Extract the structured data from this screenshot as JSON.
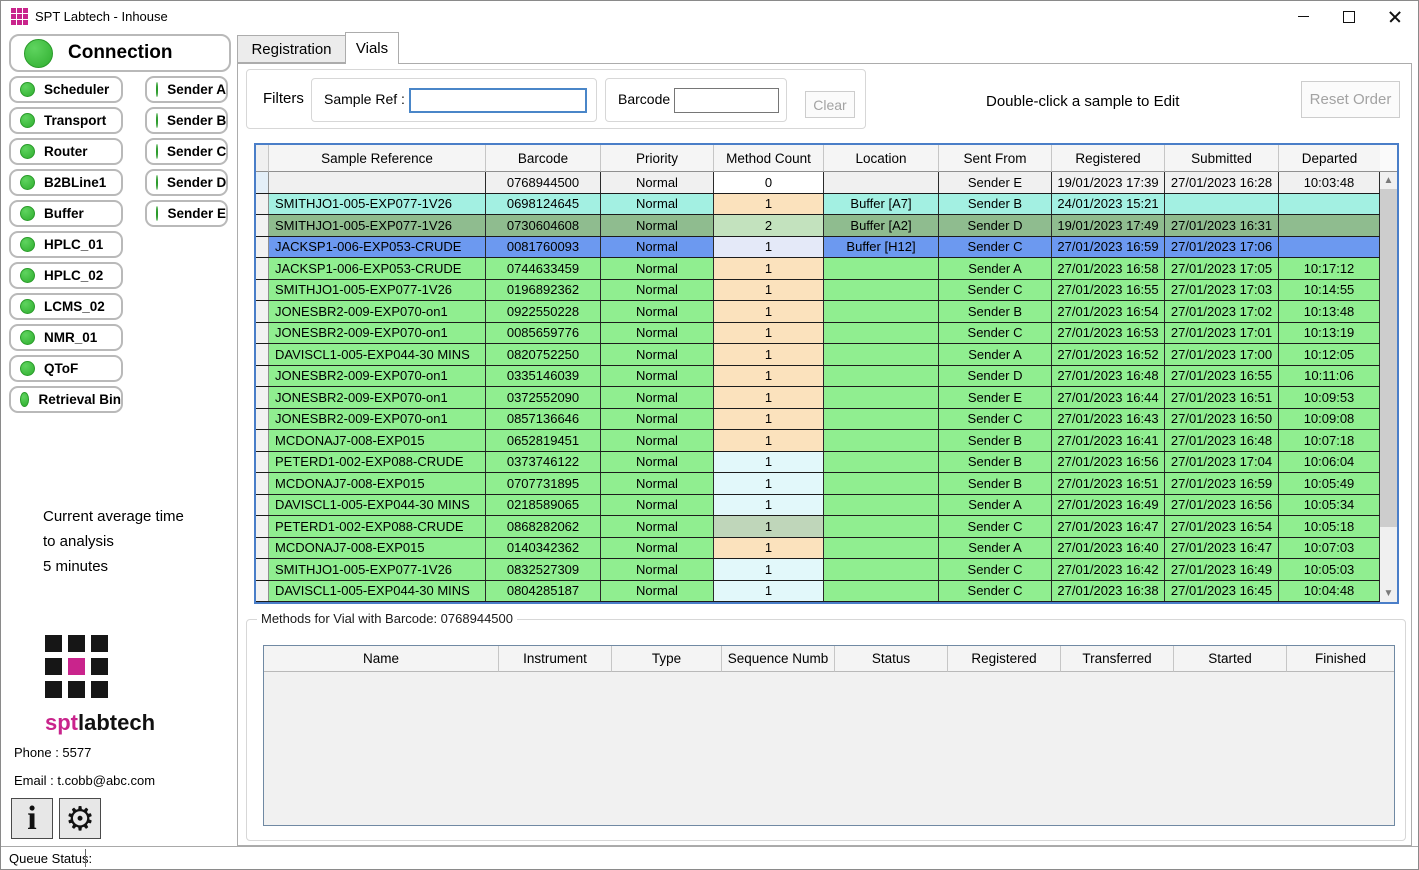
{
  "colors": {
    "status_green": "#3abe3a",
    "brand_magenta": "#c9248c",
    "focus_blue": "#4a86c8",
    "grid_border_blue": "#4a7ec8"
  },
  "window": {
    "title": "SPT Labtech - Inhouse"
  },
  "sidebar": {
    "connection_label": "Connection",
    "devices": [
      "Scheduler",
      "Transport",
      "Router",
      "B2BLine1",
      "Buffer",
      "HPLC_01",
      "HPLC_02",
      "LCMS_02",
      "NMR_01",
      "QToF",
      "Retrieval Bin"
    ],
    "senders": [
      "Sender A",
      "Sender B",
      "Sender C",
      "Sender D",
      "Sender E"
    ],
    "average_time": [
      "Current average time",
      "to analysis",
      "5 minutes"
    ],
    "logo": {
      "spt": "spt",
      "labtech": "labtech"
    },
    "phone": "Phone : 5577",
    "email": "Email : t.cobb@abc.com",
    "icons": {
      "info": "i",
      "settings": "⚙"
    }
  },
  "statusbar": {
    "label": "Queue Status:",
    "value": ""
  },
  "tabs": {
    "registration": "Registration",
    "vials": "Vials"
  },
  "filters": {
    "label": "Filters",
    "sample_ref_label": "Sample Ref :",
    "sample_ref_value": "",
    "barcode_label": "Barcode :",
    "barcode_value": "",
    "clear_label": "Clear"
  },
  "toolbar": {
    "edit_hint": "Double-click a sample to Edit",
    "reset_order_label": "Reset Order"
  },
  "vials_table": {
    "columns": [
      "Sample Reference",
      "Barcode",
      "Priority",
      "Method Count",
      "Location",
      "Sent From",
      "Registered",
      "Submitted",
      "Departed"
    ],
    "row_colors": {
      "selected": "#f0f0f0",
      "cyan": "#a3f0e2",
      "sage": "#8fbc8f",
      "blue": "#6c99f0",
      "green": "#90ee90"
    },
    "mc_colors": {
      "white": "#ffffff",
      "peach": "#fbe2bd",
      "ltgreen": "#c3e2be",
      "lavender": "#e4e9f8",
      "ltcyan": "#e2f8fa",
      "graygreen": "#bfd6ba"
    },
    "rows": [
      {
        "cells": [
          "",
          "0768944500",
          "Normal",
          "0",
          "",
          "Sender E",
          "19/01/2023 17:39",
          "27/01/2023 16:28",
          "10:03:48"
        ],
        "row_style": "selected",
        "mc_style": "white"
      },
      {
        "cells": [
          "SMITHJO1-005-EXP077-1V26",
          "0698124645",
          "Normal",
          "1",
          "Buffer [A7]",
          "Sender B",
          "24/01/2023 15:21",
          "",
          ""
        ],
        "row_style": "cyan",
        "mc_style": "peach"
      },
      {
        "cells": [
          "SMITHJO1-005-EXP077-1V26",
          "0730604608",
          "Normal",
          "2",
          "Buffer [A2]",
          "Sender D",
          "19/01/2023 17:49",
          "27/01/2023 16:31",
          ""
        ],
        "row_style": "sage",
        "mc_style": "ltgreen"
      },
      {
        "cells": [
          "JACKSP1-006-EXP053-CRUDE",
          "0081760093",
          "Normal",
          "1",
          "Buffer [H12]",
          "Sender C",
          "27/01/2023 16:59",
          "27/01/2023 17:06",
          ""
        ],
        "row_style": "blue",
        "mc_style": "lavender"
      },
      {
        "cells": [
          "JACKSP1-006-EXP053-CRUDE",
          "0744633459",
          "Normal",
          "1",
          "",
          "Sender A",
          "27/01/2023 16:58",
          "27/01/2023 17:05",
          "10:17:12"
        ],
        "row_style": "green",
        "mc_style": "peach"
      },
      {
        "cells": [
          "SMITHJO1-005-EXP077-1V26",
          "0196892362",
          "Normal",
          "1",
          "",
          "Sender C",
          "27/01/2023 16:55",
          "27/01/2023 17:03",
          "10:14:55"
        ],
        "row_style": "green",
        "mc_style": "peach"
      },
      {
        "cells": [
          "JONESBR2-009-EXP070-on1",
          "0922550228",
          "Normal",
          "1",
          "",
          "Sender B",
          "27/01/2023 16:54",
          "27/01/2023 17:02",
          "10:13:48"
        ],
        "row_style": "green",
        "mc_style": "peach"
      },
      {
        "cells": [
          "JONESBR2-009-EXP070-on1",
          "0085659776",
          "Normal",
          "1",
          "",
          "Sender C",
          "27/01/2023 16:53",
          "27/01/2023 17:01",
          "10:13:19"
        ],
        "row_style": "green",
        "mc_style": "peach"
      },
      {
        "cells": [
          "DAVISCL1-005-EXP044-30 MINS",
          "0820752250",
          "Normal",
          "1",
          "",
          "Sender A",
          "27/01/2023 16:52",
          "27/01/2023 17:00",
          "10:12:05"
        ],
        "row_style": "green",
        "mc_style": "peach"
      },
      {
        "cells": [
          "JONESBR2-009-EXP070-on1",
          "0335146039",
          "Normal",
          "1",
          "",
          "Sender D",
          "27/01/2023 16:48",
          "27/01/2023 16:55",
          "10:11:06"
        ],
        "row_style": "green",
        "mc_style": "peach"
      },
      {
        "cells": [
          "JONESBR2-009-EXP070-on1",
          "0372552090",
          "Normal",
          "1",
          "",
          "Sender E",
          "27/01/2023 16:44",
          "27/01/2023 16:51",
          "10:09:53"
        ],
        "row_style": "green",
        "mc_style": "peach"
      },
      {
        "cells": [
          "JONESBR2-009-EXP070-on1",
          "0857136646",
          "Normal",
          "1",
          "",
          "Sender C",
          "27/01/2023 16:43",
          "27/01/2023 16:50",
          "10:09:08"
        ],
        "row_style": "green",
        "mc_style": "peach"
      },
      {
        "cells": [
          "MCDONAJ7-008-EXP015",
          "0652819451",
          "Normal",
          "1",
          "",
          "Sender B",
          "27/01/2023 16:41",
          "27/01/2023 16:48",
          "10:07:18"
        ],
        "row_style": "green",
        "mc_style": "peach"
      },
      {
        "cells": [
          "PETERD1-002-EXP088-CRUDE",
          "0373746122",
          "Normal",
          "1",
          "",
          "Sender B",
          "27/01/2023 16:56",
          "27/01/2023 17:04",
          "10:06:04"
        ],
        "row_style": "green",
        "mc_style": "ltcyan"
      },
      {
        "cells": [
          "MCDONAJ7-008-EXP015",
          "0707731895",
          "Normal",
          "1",
          "",
          "Sender B",
          "27/01/2023 16:51",
          "27/01/2023 16:59",
          "10:05:49"
        ],
        "row_style": "green",
        "mc_style": "ltcyan"
      },
      {
        "cells": [
          "DAVISCL1-005-EXP044-30 MINS",
          "0218589065",
          "Normal",
          "1",
          "",
          "Sender A",
          "27/01/2023 16:49",
          "27/01/2023 16:56",
          "10:05:34"
        ],
        "row_style": "green",
        "mc_style": "ltcyan"
      },
      {
        "cells": [
          "PETERD1-002-EXP088-CRUDE",
          "0868282062",
          "Normal",
          "1",
          "",
          "Sender C",
          "27/01/2023 16:47",
          "27/01/2023 16:54",
          "10:05:18"
        ],
        "row_style": "green",
        "mc_style": "graygreen"
      },
      {
        "cells": [
          "MCDONAJ7-008-EXP015",
          "0140342362",
          "Normal",
          "1",
          "",
          "Sender A",
          "27/01/2023 16:40",
          "27/01/2023 16:47",
          "10:07:03"
        ],
        "row_style": "green",
        "mc_style": "peach"
      },
      {
        "cells": [
          "SMITHJO1-005-EXP077-1V26",
          "0832527309",
          "Normal",
          "1",
          "",
          "Sender C",
          "27/01/2023 16:42",
          "27/01/2023 16:49",
          "10:05:03"
        ],
        "row_style": "green",
        "mc_style": "ltcyan"
      },
      {
        "cells": [
          "DAVISCL1-005-EXP044-30 MINS",
          "0804285187",
          "Normal",
          "1",
          "",
          "Sender C",
          "27/01/2023 16:38",
          "27/01/2023 16:45",
          "10:04:48"
        ],
        "row_style": "green",
        "mc_style": "ltcyan"
      }
    ]
  },
  "methods": {
    "group_label": "Methods for Vial with Barcode: 0768944500",
    "columns": [
      "Name",
      "Instrument",
      "Type",
      "Sequence Numb",
      "Status",
      "Registered",
      "Transferred",
      "Started",
      "Finished"
    ],
    "rows": []
  }
}
